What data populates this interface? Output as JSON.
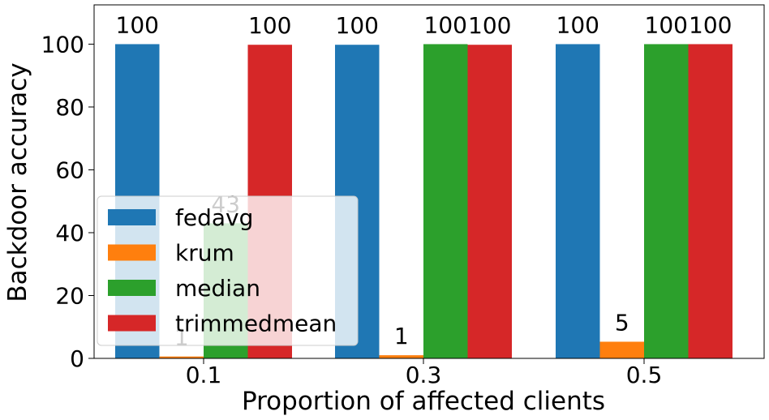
{
  "chart_data": {
    "type": "bar",
    "categories": [
      "0.1",
      "0.3",
      "0.5"
    ],
    "series": [
      {
        "name": "fedavg",
        "color": "#1f77b4",
        "values": [
          100,
          99.8,
          100
        ],
        "labels": [
          "100",
          "100",
          "100"
        ]
      },
      {
        "name": "krum",
        "color": "#ff7f0e",
        "values": [
          0.6,
          1.0,
          5.3
        ],
        "labels": [
          "1",
          "1",
          "5"
        ]
      },
      {
        "name": "median",
        "color": "#2ca02c",
        "values": [
          43,
          100,
          100
        ],
        "labels": [
          "43",
          "100",
          "100"
        ]
      },
      {
        "name": "trimmedmean",
        "color": "#d62728",
        "values": [
          99.8,
          99.8,
          100
        ],
        "labels": [
          "100",
          "100",
          "100"
        ]
      }
    ],
    "xlabel": "Proportion of affected clients",
    "ylabel": "Backdoor accuracy",
    "ylim": [
      0,
      112.5
    ],
    "yticks": [
      0,
      20,
      40,
      60,
      80,
      100
    ],
    "legend": "lower-left",
    "grid": false
  }
}
